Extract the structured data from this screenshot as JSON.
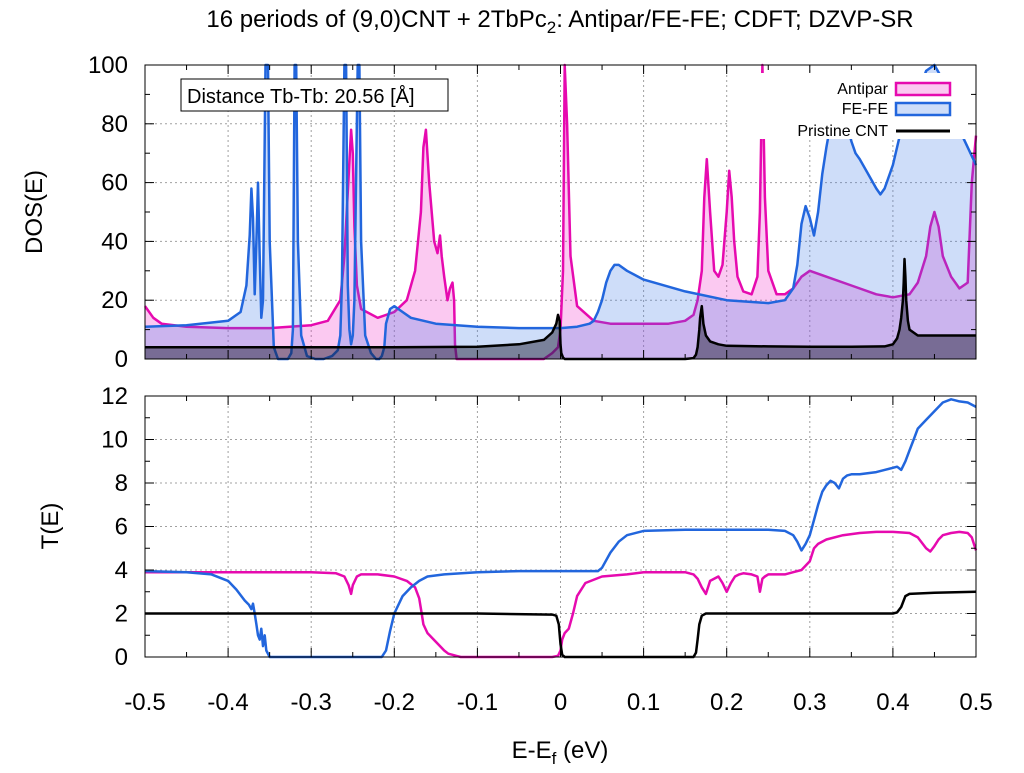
{
  "title_main": "16 periods of (9,0)CNT + 2TbPc",
  "title_sub": "2",
  "title_rest": ": Antipar/FE-FE; CDFT; DZVP-SR",
  "annotation": "Distance Tb-Tb: 20.56 [Å]",
  "x_axis": {
    "label_main": "E-E",
    "label_sub": "f",
    "label_rest": " (eV)",
    "range": [
      -0.5,
      0.5
    ],
    "ticks": [
      -0.5,
      -0.4,
      -0.3,
      -0.2,
      -0.1,
      0,
      0.1,
      0.2,
      0.3,
      0.4,
      0.5
    ],
    "tick_labels": [
      "-0.5",
      "-0.4",
      "-0.3",
      "-0.2",
      "-0.1",
      "0",
      "0.1",
      "0.2",
      "0.3",
      "0.4",
      "0.5"
    ]
  },
  "colors": {
    "antipar": "#e60aaf",
    "fefe": "#2266dd",
    "pristine": "#000000"
  },
  "chart_data": [
    {
      "type": "area",
      "ylabel": "DOS(E)",
      "ylim": [
        0,
        100
      ],
      "yticks": [
        0,
        20,
        40,
        60,
        80,
        100
      ],
      "ytick_labels": [
        "0",
        "20",
        "40",
        "60",
        "80",
        "100"
      ],
      "grid": true,
      "legend_position": "top-right",
      "series": [
        {
          "name": "Antipar",
          "x": [
            -0.5,
            -0.49,
            -0.48,
            -0.45,
            -0.4,
            -0.35,
            -0.3,
            -0.28,
            -0.265,
            -0.26,
            -0.255,
            -0.252,
            -0.25,
            -0.248,
            -0.245,
            -0.24,
            -0.22,
            -0.2,
            -0.185,
            -0.175,
            -0.168,
            -0.165,
            -0.162,
            -0.158,
            -0.152,
            -0.148,
            -0.145,
            -0.143,
            -0.14,
            -0.136,
            -0.133,
            -0.13,
            -0.128,
            -0.127,
            -0.125,
            -0.12,
            -0.1,
            -0.05,
            -0.02,
            -0.01,
            -0.003,
            0.0,
            0.003,
            0.005,
            0.008,
            0.012,
            0.02,
            0.04,
            0.06,
            0.1,
            0.13,
            0.15,
            0.16,
            0.165,
            0.17,
            0.173,
            0.176,
            0.18,
            0.185,
            0.19,
            0.195,
            0.2,
            0.203,
            0.206,
            0.209,
            0.213,
            0.22,
            0.23,
            0.237,
            0.24,
            0.243,
            0.246,
            0.25,
            0.26,
            0.27,
            0.28,
            0.29,
            0.3,
            0.32,
            0.35,
            0.38,
            0.4,
            0.42,
            0.43,
            0.44,
            0.445,
            0.45,
            0.455,
            0.46,
            0.47,
            0.48,
            0.49,
            0.495,
            0.5
          ],
          "y": [
            18,
            14,
            12,
            11,
            10.5,
            10.5,
            11.5,
            13,
            20,
            35,
            62,
            78,
            70,
            45,
            25,
            17,
            14,
            16,
            20,
            30,
            50,
            72,
            78,
            60,
            40,
            36,
            42,
            35,
            28,
            20,
            24,
            26,
            20,
            5,
            0,
            0,
            0,
            0,
            0,
            2,
            4,
            10,
            30,
            100,
            80,
            35,
            18,
            13,
            12,
            12,
            12,
            13,
            15,
            20,
            30,
            55,
            68,
            50,
            30,
            28,
            32,
            50,
            64,
            55,
            40,
            28,
            23,
            22,
            28,
            50,
            100,
            55,
            30,
            22,
            22,
            24,
            28,
            30,
            28,
            25,
            22,
            21,
            22,
            26,
            35,
            45,
            50,
            45,
            35,
            28,
            24,
            26,
            60,
            76
          ]
        },
        {
          "name": "FE-FE",
          "x": [
            -0.5,
            -0.45,
            -0.4,
            -0.385,
            -0.378,
            -0.374,
            -0.372,
            -0.37,
            -0.368,
            -0.366,
            -0.364,
            -0.362,
            -0.36,
            -0.358,
            -0.355,
            -0.352,
            -0.35,
            -0.345,
            -0.34,
            -0.335,
            -0.328,
            -0.324,
            -0.322,
            -0.32,
            -0.318,
            -0.316,
            -0.312,
            -0.305,
            -0.295,
            -0.285,
            -0.275,
            -0.268,
            -0.265,
            -0.263,
            -0.26,
            -0.258,
            -0.256,
            -0.254,
            -0.252,
            -0.25,
            -0.248,
            -0.246,
            -0.244,
            -0.242,
            -0.24,
            -0.235,
            -0.228,
            -0.222,
            -0.218,
            -0.215,
            -0.212,
            -0.21,
            -0.205,
            -0.2,
            -0.19,
            -0.18,
            -0.15,
            -0.1,
            -0.05,
            0,
            0.02,
            0.035,
            0.04,
            0.045,
            0.05,
            0.055,
            0.06,
            0.065,
            0.07,
            0.08,
            0.1,
            0.15,
            0.2,
            0.25,
            0.27,
            0.28,
            0.285,
            0.29,
            0.295,
            0.3,
            0.305,
            0.31,
            0.315,
            0.32,
            0.325,
            0.33,
            0.335,
            0.34,
            0.345,
            0.35,
            0.355,
            0.36,
            0.37,
            0.38,
            0.385,
            0.39,
            0.4,
            0.41,
            0.415,
            0.42,
            0.43,
            0.44,
            0.45,
            0.46,
            0.47,
            0.48,
            0.49,
            0.5
          ],
          "y": [
            11,
            11.5,
            13,
            16,
            25,
            42,
            58,
            48,
            22,
            40,
            60,
            35,
            14,
            20,
            100,
            100,
            40,
            4,
            0,
            0,
            0,
            2,
            10,
            100,
            100,
            40,
            8,
            1,
            0,
            0,
            1,
            3,
            8,
            25,
            100,
            100,
            25,
            10,
            5,
            8,
            20,
            62,
            100,
            100,
            40,
            8,
            2,
            0,
            0,
            1,
            4,
            12,
            17,
            18,
            16,
            14,
            12,
            11,
            10.5,
            10.5,
            11,
            12,
            13,
            16,
            20,
            26,
            30,
            32,
            32,
            30,
            27,
            23,
            20,
            19,
            20,
            24,
            32,
            46,
            52,
            48,
            42,
            50,
            63,
            72,
            80,
            85,
            88,
            86,
            80,
            74,
            70,
            68,
            63,
            58,
            56,
            58,
            66,
            78,
            85,
            88,
            90,
            98,
            100,
            95,
            85,
            78,
            72,
            66
          ]
        },
        {
          "name": "Pristine CNT",
          "x": [
            -0.5,
            -0.45,
            -0.4,
            -0.3,
            -0.2,
            -0.1,
            -0.05,
            -0.02,
            -0.01,
            -0.005,
            -0.003,
            -0.001,
            0.0,
            0.001,
            0.003,
            0.005,
            0.01,
            0.05,
            0.1,
            0.15,
            0.16,
            0.163,
            0.165,
            0.167,
            0.168,
            0.17,
            0.172,
            0.175,
            0.18,
            0.19,
            0.2,
            0.25,
            0.3,
            0.35,
            0.39,
            0.4,
            0.405,
            0.408,
            0.41,
            0.412,
            0.413,
            0.414,
            0.415,
            0.416,
            0.418,
            0.42,
            0.43,
            0.45,
            0.5
          ],
          "y": [
            4,
            4,
            4,
            4,
            4,
            4.2,
            5,
            6.5,
            9,
            12,
            15,
            13,
            5,
            2,
            0.5,
            0,
            0,
            0,
            0,
            0,
            0.3,
            1.5,
            4,
            10,
            14,
            18,
            12,
            8,
            6,
            5,
            4.5,
            4.3,
            4.2,
            4.2,
            4.3,
            5,
            7,
            10,
            14,
            20,
            26,
            34,
            28,
            20,
            13,
            10,
            8,
            8,
            8
          ]
        }
      ]
    },
    {
      "type": "line",
      "ylabel": "T(E)",
      "ylim": [
        0,
        12
      ],
      "yticks": [
        0,
        2,
        4,
        6,
        8,
        10,
        12
      ],
      "ytick_labels": [
        "0",
        "2",
        "4",
        "6",
        "8",
        "10",
        "12"
      ],
      "grid": true,
      "series": [
        {
          "name": "Antipar",
          "x": [
            -0.5,
            -0.3,
            -0.27,
            -0.26,
            -0.255,
            -0.252,
            -0.25,
            -0.245,
            -0.24,
            -0.22,
            -0.2,
            -0.185,
            -0.175,
            -0.17,
            -0.167,
            -0.165,
            -0.16,
            -0.15,
            -0.14,
            -0.135,
            -0.13,
            -0.125,
            -0.12,
            -0.1,
            -0.05,
            -0.01,
            -0.003,
            0,
            0.002,
            0.005,
            0.01,
            0.015,
            0.02,
            0.03,
            0.05,
            0.08,
            0.1,
            0.15,
            0.16,
            0.165,
            0.17,
            0.175,
            0.18,
            0.19,
            0.195,
            0.2,
            0.205,
            0.21,
            0.215,
            0.22,
            0.23,
            0.237,
            0.24,
            0.243,
            0.246,
            0.25,
            0.27,
            0.28,
            0.29,
            0.3,
            0.305,
            0.31,
            0.32,
            0.34,
            0.36,
            0.38,
            0.4,
            0.42,
            0.43,
            0.44,
            0.445,
            0.45,
            0.455,
            0.46,
            0.47,
            0.48,
            0.49,
            0.495,
            0.5
          ],
          "y": [
            3.9,
            3.9,
            3.85,
            3.7,
            3.3,
            2.9,
            3.3,
            3.7,
            3.8,
            3.8,
            3.7,
            3.5,
            3.2,
            2.7,
            2,
            1.5,
            1.1,
            0.7,
            0.3,
            0.15,
            0.1,
            0.05,
            0,
            0,
            0,
            0,
            0.05,
            0.3,
            0.8,
            1.1,
            1.3,
            2,
            2.8,
            3.4,
            3.7,
            3.8,
            3.9,
            3.9,
            3.8,
            3.6,
            3.2,
            2.9,
            3.5,
            3.7,
            3.4,
            3.0,
            3.4,
            3.7,
            3.8,
            3.85,
            3.8,
            3.7,
            3.0,
            3.6,
            3.7,
            3.8,
            3.8,
            3.9,
            4.0,
            4.4,
            5.0,
            5.2,
            5.4,
            5.6,
            5.7,
            5.75,
            5.75,
            5.7,
            5.5,
            5.0,
            4.85,
            5.1,
            5.4,
            5.6,
            5.7,
            5.75,
            5.7,
            5.5,
            4.9
          ]
        },
        {
          "name": "FE-FE",
          "x": [
            -0.5,
            -0.45,
            -0.42,
            -0.4,
            -0.39,
            -0.38,
            -0.375,
            -0.372,
            -0.37,
            -0.368,
            -0.366,
            -0.364,
            -0.362,
            -0.36,
            -0.358,
            -0.356,
            -0.354,
            -0.35,
            -0.3,
            -0.25,
            -0.215,
            -0.21,
            -0.205,
            -0.2,
            -0.19,
            -0.18,
            -0.17,
            -0.16,
            -0.14,
            -0.1,
            -0.05,
            0,
            0.03,
            0.045,
            0.05,
            0.06,
            0.07,
            0.08,
            0.1,
            0.15,
            0.2,
            0.25,
            0.27,
            0.28,
            0.285,
            0.29,
            0.295,
            0.3,
            0.305,
            0.31,
            0.315,
            0.32,
            0.325,
            0.33,
            0.335,
            0.34,
            0.345,
            0.35,
            0.36,
            0.38,
            0.39,
            0.4,
            0.405,
            0.41,
            0.415,
            0.42,
            0.425,
            0.43,
            0.44,
            0.45,
            0.46,
            0.47,
            0.475,
            0.48,
            0.49,
            0.5
          ],
          "y": [
            3.95,
            3.9,
            3.8,
            3.5,
            3.1,
            2.6,
            2.4,
            2.2,
            2.45,
            2.0,
            1.5,
            1.0,
            0.8,
            1.3,
            0.5,
            1.0,
            0.3,
            0,
            0,
            0,
            0,
            0.3,
            1.2,
            2.0,
            2.8,
            3.2,
            3.5,
            3.7,
            3.8,
            3.9,
            3.95,
            3.95,
            3.95,
            3.95,
            4.1,
            4.8,
            5.3,
            5.6,
            5.8,
            5.85,
            5.85,
            5.85,
            5.8,
            5.6,
            5.3,
            4.9,
            5.2,
            5.6,
            6.3,
            7.0,
            7.6,
            7.9,
            8.1,
            8.0,
            7.75,
            8.2,
            8.35,
            8.4,
            8.4,
            8.5,
            8.6,
            8.7,
            8.75,
            8.6,
            9.0,
            9.5,
            10.0,
            10.5,
            10.9,
            11.3,
            11.7,
            11.85,
            11.8,
            11.75,
            11.7,
            11.5
          ]
        },
        {
          "name": "Pristine CNT",
          "x": [
            -0.5,
            -0.1,
            -0.01,
            -0.005,
            -0.002,
            0,
            0.002,
            0.005,
            0.1,
            0.16,
            0.163,
            0.165,
            0.167,
            0.17,
            0.175,
            0.2,
            0.3,
            0.4,
            0.405,
            0.41,
            0.415,
            0.42,
            0.45,
            0.5
          ],
          "y": [
            2,
            2,
            1.95,
            1.9,
            1.5,
            0.6,
            0.1,
            0,
            0,
            0,
            0.2,
            0.8,
            1.5,
            1.9,
            2,
            2,
            2,
            2,
            2.05,
            2.3,
            2.8,
            2.9,
            2.95,
            3.0
          ]
        }
      ]
    }
  ]
}
